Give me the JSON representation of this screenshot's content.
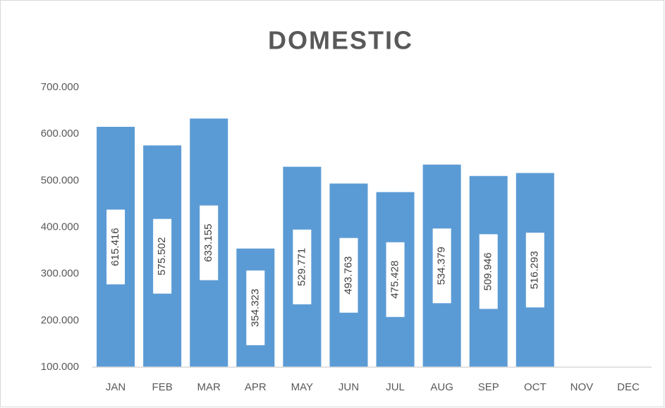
{
  "chart_data": {
    "type": "bar",
    "title": "DOMESTIC",
    "categories": [
      "JAN",
      "FEB",
      "MAR",
      "APR",
      "MAY",
      "JUN",
      "JUL",
      "AUG",
      "SEP",
      "OCT",
      "NOV",
      "DEC"
    ],
    "values": [
      615416,
      575502,
      633155,
      354323,
      529771,
      493763,
      475428,
      534379,
      509946,
      516293,
      null,
      null
    ],
    "value_labels": [
      "615.416",
      "575.502",
      "633.155",
      "354.323",
      "529.771",
      "493.763",
      "475.428",
      "534.379",
      "509.946",
      "516.293",
      null,
      null
    ],
    "color": "#5b9bd5",
    "ylim": [
      100000,
      700000
    ],
    "yticks": [
      {
        "value": 100000,
        "label": "100.000"
      },
      {
        "value": 200000,
        "label": "200.000"
      },
      {
        "value": 300000,
        "label": "300.000"
      },
      {
        "value": 400000,
        "label": "400.000"
      },
      {
        "value": 500000,
        "label": "500.000"
      },
      {
        "value": 600000,
        "label": "600.000"
      },
      {
        "value": 700000,
        "label": "700.000"
      }
    ],
    "grid": false
  }
}
